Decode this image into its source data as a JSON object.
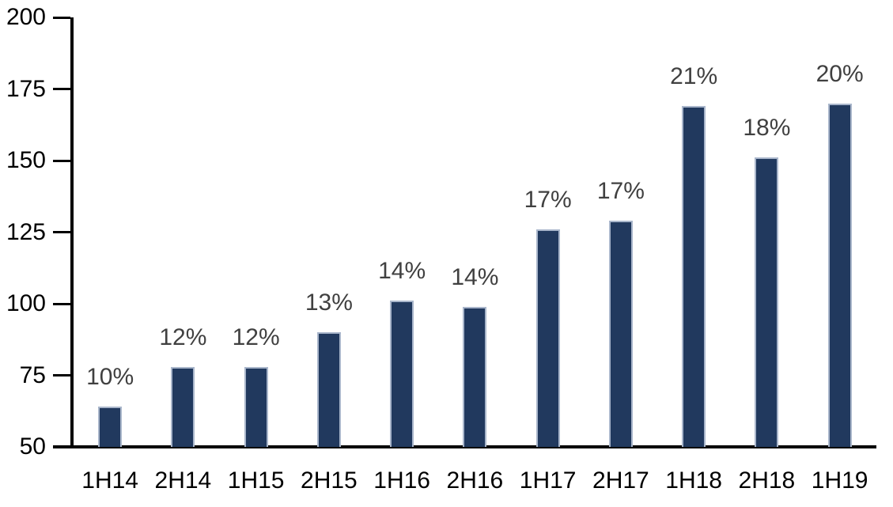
{
  "chart_data": {
    "type": "bar",
    "title": "",
    "xlabel": "",
    "ylabel": "",
    "categories": [
      "1H14",
      "2H14",
      "1H15",
      "2H15",
      "1H16",
      "2H16",
      "1H17",
      "2H17",
      "1H18",
      "2H18",
      "1H19"
    ],
    "values": [
      64,
      78,
      78,
      90,
      101,
      99,
      126,
      129,
      169,
      151,
      170
    ],
    "data_labels": [
      "10%",
      "12%",
      "12%",
      "13%",
      "14%",
      "14%",
      "17%",
      "17%",
      "21%",
      "18%",
      "20%"
    ],
    "ylim": [
      50,
      200
    ],
    "yticks": [
      50,
      75,
      100,
      125,
      150,
      175,
      200
    ],
    "grid": false,
    "legend": false,
    "colors": {
      "bar_fill": "#21395E",
      "bar_border": "#A9B6CB",
      "data_label": "#404040",
      "axis_line": "#000000",
      "axis_text": "#000000",
      "background": "#FFFFFF"
    }
  }
}
